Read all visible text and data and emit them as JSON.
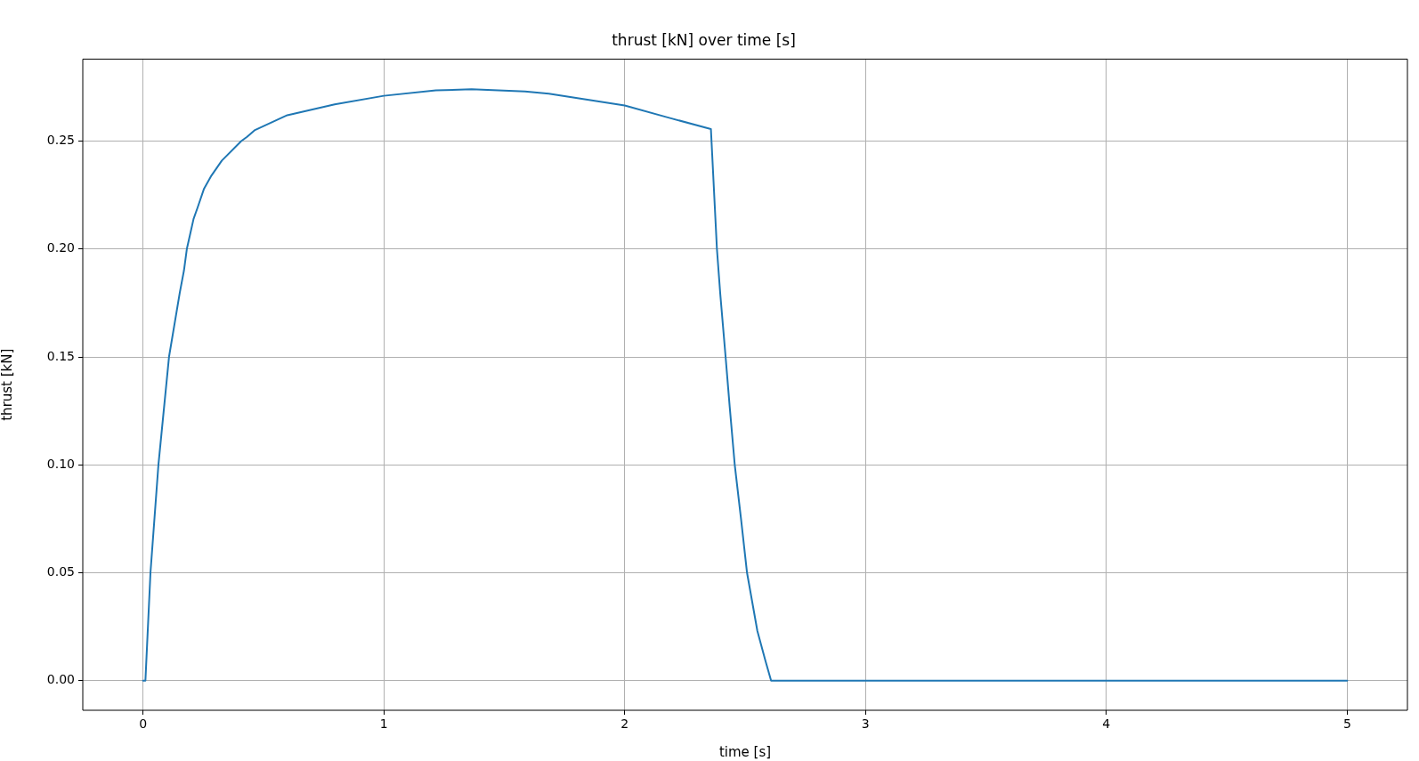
{
  "chart_data": {
    "type": "line",
    "title": "thrust [kN] over time [s]",
    "xlabel": "time [s]",
    "ylabel": "thrust [kN]",
    "x": [
      0,
      0.01,
      0.031,
      0.064,
      0.108,
      0.153,
      0.17,
      0.182,
      0.21,
      0.226,
      0.2535,
      0.284,
      0.3275,
      0.408,
      0.432,
      0.463,
      0.599,
      0.796,
      1.0,
      1.216,
      1.364,
      1.586,
      1.685,
      2.0,
      2.178,
      2.358,
      2.383,
      2.397,
      2.419,
      2.436,
      2.457,
      2.483,
      2.508,
      2.551,
      2.585,
      2.608,
      5
    ],
    "series": [
      {
        "color": "#1f77b4",
        "values": [
          0,
          0,
          0.05,
          0.1,
          0.15,
          0.18,
          0.19,
          0.2,
          0.214,
          0.219,
          0.228,
          0.234,
          0.241,
          0.25,
          0.252,
          0.255,
          0.262,
          0.267,
          0.271,
          0.2735,
          0.274,
          0.273,
          0.272,
          0.2665,
          0.261,
          0.2556,
          0.2,
          0.179,
          0.15,
          0.127,
          0.1,
          0.075,
          0.05,
          0.023,
          0.009,
          0,
          0
        ]
      }
    ],
    "xlim": [
      -0.25,
      5.25
    ],
    "xticks": [
      0,
      1,
      2,
      3,
      4,
      5
    ],
    "ylim": [
      -0.0137,
      0.288
    ],
    "yticks": [
      {
        "value": 0,
        "label": "0.00"
      },
      {
        "value": 0.05,
        "label": "0.05"
      },
      {
        "value": 0.1,
        "label": "0.10"
      },
      {
        "value": 0.15,
        "label": "0.15"
      },
      {
        "value": 0.2,
        "label": "0.20"
      },
      {
        "value": 0.25,
        "label": "0.25"
      }
    ],
    "grid": true,
    "legend": false
  }
}
